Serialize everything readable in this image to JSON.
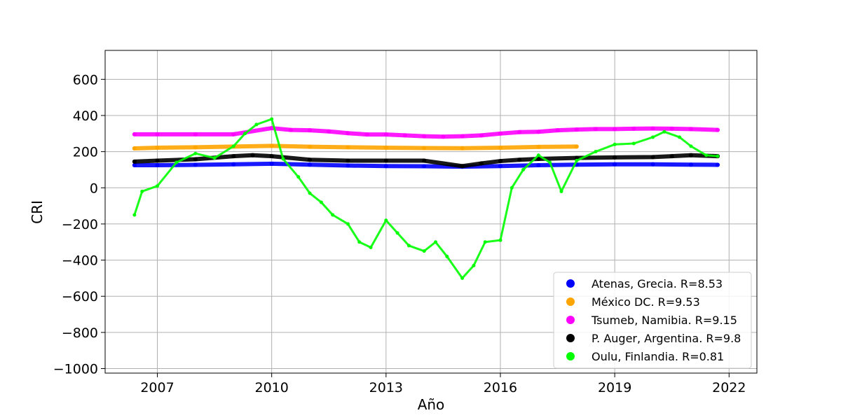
{
  "chart_data": {
    "type": "scatter",
    "title": "",
    "xlabel": "Año",
    "ylabel": "CRI",
    "xlim": [
      2005.63,
      2022.73
    ],
    "ylim": [
      -1025,
      760
    ],
    "grid": true,
    "legend_position": "lower-right",
    "x_ticks": [
      {
        "value": 2007,
        "label": "2007"
      },
      {
        "value": 2010,
        "label": "2010"
      },
      {
        "value": 2013,
        "label": "2013"
      },
      {
        "value": 2016,
        "label": "2016"
      },
      {
        "value": 2019,
        "label": "2019"
      },
      {
        "value": 2022,
        "label": "2022"
      }
    ],
    "y_ticks": [
      {
        "value": 600,
        "label": "600"
      },
      {
        "value": 400,
        "label": "400"
      },
      {
        "value": 200,
        "label": "200"
      },
      {
        "value": 0,
        "label": "0"
      },
      {
        "value": -200,
        "label": "−200"
      },
      {
        "value": -400,
        "label": "−400"
      },
      {
        "value": -600,
        "label": "−600"
      },
      {
        "value": -800,
        "label": "−800"
      },
      {
        "value": -1000,
        "label": "−1000"
      }
    ],
    "series": [
      {
        "name": "Atenas, Grecia. R=8.53",
        "color": "#0000ff",
        "x": [
          2006.4,
          2007.0,
          2008.0,
          2009.0,
          2010.0,
          2011.0,
          2012.0,
          2013.0,
          2014.0,
          2015.0,
          2016.0,
          2017.0,
          2018.0,
          2019.0,
          2020.0,
          2021.0,
          2021.7
        ],
        "y": [
          125,
          125,
          127,
          130,
          133,
          128,
          123,
          120,
          119,
          117,
          120,
          125,
          128,
          130,
          130,
          128,
          127
        ]
      },
      {
        "name": "México DC. R=9.53",
        "color": "#ffa500",
        "x": [
          2006.4,
          2007.0,
          2008.0,
          2009.0,
          2010.0,
          2011.0,
          2012.0,
          2013.0,
          2014.0,
          2015.0,
          2016.0,
          2017.0,
          2018.0
        ],
        "y": [
          218,
          222,
          224,
          228,
          232,
          227,
          224,
          222,
          220,
          219,
          222,
          226,
          228
        ]
      },
      {
        "name": "Tsumeb, Namibia. R=9.15",
        "color": "#ff00ff",
        "x": [
          2006.4,
          2007.0,
          2008.0,
          2009.0,
          2010.0,
          2010.5,
          2011.0,
          2011.5,
          2012.0,
          2012.5,
          2013.0,
          2013.5,
          2014.0,
          2014.5,
          2015.0,
          2015.5,
          2016.0,
          2016.5,
          2017.0,
          2017.5,
          2018.0,
          2018.5,
          2019.0,
          2019.5,
          2020.0,
          2020.5,
          2021.0,
          2021.7
        ],
        "y": [
          296,
          296,
          296,
          296,
          330,
          320,
          318,
          312,
          302,
          295,
          295,
          290,
          285,
          283,
          285,
          290,
          300,
          308,
          310,
          318,
          322,
          325,
          325,
          327,
          328,
          327,
          325,
          320
        ]
      },
      {
        "name": "P. Auger, Argentina. R=9.8",
        "color": "#000000",
        "x": [
          2006.4,
          2007.0,
          2008.0,
          2009.0,
          2009.5,
          2010.0,
          2011.0,
          2012.0,
          2013.0,
          2014.0,
          2015.0,
          2015.5,
          2016.0,
          2016.5,
          2017.0,
          2018.0,
          2019.0,
          2020.0,
          2020.5,
          2021.0,
          2021.7
        ],
        "y": [
          145,
          150,
          158,
          175,
          180,
          175,
          155,
          150,
          150,
          150,
          120,
          135,
          148,
          155,
          160,
          165,
          168,
          170,
          175,
          180,
          175
        ]
      },
      {
        "name": "Oulu, Finlandia. R=0.81",
        "color": "#00ff00",
        "x": [
          2006.4,
          2006.6,
          2007.0,
          2007.5,
          2008.0,
          2008.5,
          2009.0,
          2009.3,
          2009.6,
          2010.0,
          2010.3,
          2010.7,
          2011.0,
          2011.3,
          2011.6,
          2012.0,
          2012.3,
          2012.6,
          2013.0,
          2013.3,
          2013.6,
          2014.0,
          2014.3,
          2014.6,
          2015.0,
          2015.3,
          2015.6,
          2016.0,
          2016.3,
          2016.6,
          2017.0,
          2017.3,
          2017.6,
          2018.0,
          2018.5,
          2019.0,
          2019.5,
          2020.0,
          2020.3,
          2020.7,
          2021.0,
          2021.4,
          2021.7
        ],
        "y": [
          -150,
          -20,
          10,
          140,
          190,
          165,
          230,
          300,
          350,
          380,
          160,
          60,
          -30,
          -80,
          -150,
          -200,
          -300,
          -330,
          -180,
          -250,
          -320,
          -350,
          -300,
          -380,
          -500,
          -430,
          -300,
          -290,
          0,
          100,
          180,
          140,
          -20,
          150,
          200,
          240,
          245,
          280,
          310,
          280,
          230,
          180,
          175
        ]
      }
    ]
  }
}
